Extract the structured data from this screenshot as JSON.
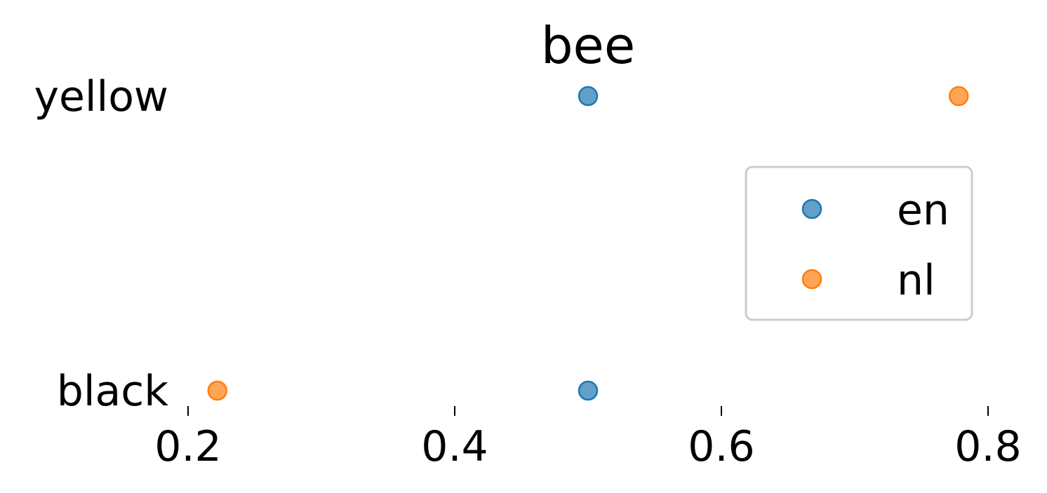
{
  "chart_data": {
    "type": "scatter",
    "title": "bee",
    "xlabel": "",
    "ylabel": "",
    "categories": [
      "yellow",
      "black"
    ],
    "xlim": [
      0.1,
      0.83
    ],
    "xticks": [
      "0.2",
      "0.4",
      "0.6",
      "0.8"
    ],
    "grid": false,
    "legend_position": "center-right",
    "series": [
      {
        "name": "en",
        "color": "#1f77b4",
        "points": [
          {
            "category": "yellow",
            "x": 0.5
          },
          {
            "category": "black",
            "x": 0.5
          }
        ]
      },
      {
        "name": "nl",
        "color": "#ff7f0e",
        "points": [
          {
            "category": "yellow",
            "x": 0.778
          },
          {
            "category": "black",
            "x": 0.222
          }
        ]
      }
    ]
  }
}
